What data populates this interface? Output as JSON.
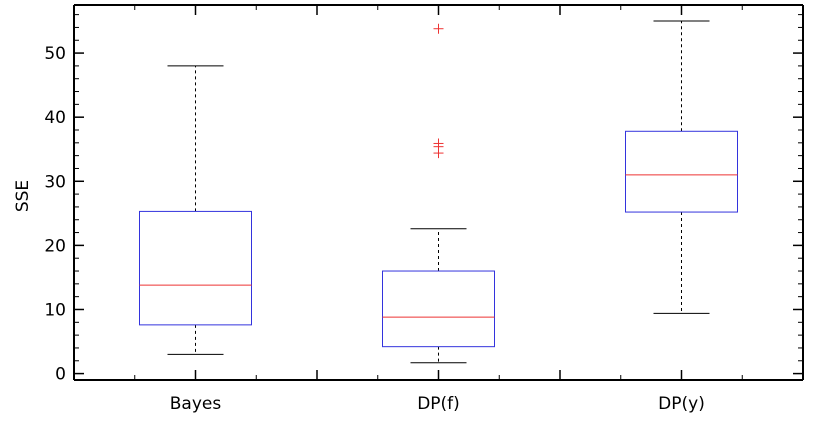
{
  "chart_data": {
    "type": "box",
    "title": "",
    "xlabel": "",
    "ylabel": "SSE",
    "ylim": [
      -1,
      57.5
    ],
    "yticks": [
      0,
      10,
      20,
      30,
      40,
      50
    ],
    "categories": [
      "Bayes",
      "DP(f)",
      "DP(y)"
    ],
    "boxes": [
      {
        "category": "Bayes",
        "whisker_low": 3.0,
        "q1": 7.6,
        "median": 13.8,
        "q3": 25.3,
        "whisker_high": 48.0,
        "outliers": []
      },
      {
        "category": "DP(f)",
        "whisker_low": 1.7,
        "q1": 4.2,
        "median": 8.8,
        "q3": 16.0,
        "whisker_high": 22.6,
        "outliers": [
          34.4,
          35.4,
          35.9,
          53.8
        ]
      },
      {
        "category": "DP(y)",
        "whisker_low": 9.4,
        "q1": 25.2,
        "median": 31.0,
        "q3": 37.8,
        "whisker_high": 55.0,
        "outliers": []
      }
    ],
    "grid": false,
    "colors": {
      "box": "#3333dd",
      "median": "#ee3333",
      "whisker": "#000000",
      "outlier": "#ee3333",
      "axis": "#000000"
    }
  }
}
